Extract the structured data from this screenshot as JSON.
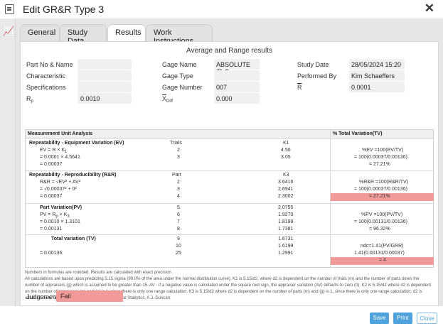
{
  "window": {
    "title": "Edit GR&R Type 3",
    "close_label": "✕"
  },
  "rail": {
    "icon": "chart-icon",
    "glyph": "📈"
  },
  "tabs": [
    {
      "label": "General",
      "active": false
    },
    {
      "label": "Study Data",
      "active": false
    },
    {
      "label": "Results",
      "active": true
    },
    {
      "label": "Work Instructions",
      "active": false
    }
  ],
  "panel_title": "Average and Range results",
  "info": {
    "part_no_label": "Part No & Name",
    "characteristic_label": "Characteristic",
    "specifications_label": "Specifications",
    "rp_label": "R",
    "rp_sub": "p",
    "rp_value": "0.0010",
    "gage_name_label": "Gage Name",
    "gage_name_value": "ABSOLUTE ID-S",
    "gage_type_label": "Gage Type",
    "gage_number_label": "Gage Number",
    "gage_number_value": "007",
    "xdiff_label": "X",
    "xdiff_sub": "Diff",
    "xdiff_value": "0.000",
    "study_date_label": "Study Date",
    "study_date_value": "28/05/2024 15:20",
    "performed_by_label": "Performed By",
    "performed_by_value": "Kim Schaeffers",
    "rbar_label": "R",
    "rbar_value": "0.0001"
  },
  "mua": {
    "title": "Measurement Unit Analysis",
    "pct_title": "% Total Variation(TV)",
    "ev": {
      "title": "Repeatability - Equipment Variation (EV)",
      "f1": "EV = R  × K",
      "f1_sub": "1",
      "f2": "= 0.0001 × 4.5641",
      "f3": "= 0.00037",
      "col_label": "Trials",
      "rows": [
        {
          "n": "2",
          "k": "4.56"
        },
        {
          "n": "3",
          "k": "3.05"
        }
      ],
      "k_label": "K1",
      "p1": "%EV =100(EV/TV)",
      "p2": "= 100(0.00037/0.00136)",
      "p3": "= 27.21%"
    },
    "rr": {
      "title": "Repeatability - Reproducibility (R&R)",
      "f1": "R&R = √EV² + AV²",
      "f2": "= √0.00037² + 0²",
      "f3": "= 0.00037",
      "col_label": "Part",
      "rows": [
        {
          "n": "2",
          "k": "3.6416"
        },
        {
          "n": "3",
          "k": "2.6941"
        },
        {
          "n": "4",
          "k": "2.3002"
        }
      ],
      "k_label": "K3",
      "p1": "%R&R =100(R&R/TV)",
      "p2": "= 100(0.00037/0.00136)",
      "p3": "= 27.21%"
    },
    "pv": {
      "title": "Part Variation(PV)",
      "f1": "PV = R  × K",
      "f1_sub_p": "p",
      "f1_sub_k": "3",
      "f2": "= 0.0010 × 1.3101",
      "f3": "= 0.00131",
      "rows": [
        {
          "n": "5",
          "k": "2.0755"
        },
        {
          "n": "6",
          "k": "1.9270"
        },
        {
          "n": "7",
          "k": "1.8199"
        },
        {
          "n": "8",
          "k": "1.7381"
        }
      ],
      "p1": "%PV =100(PV/TV)",
      "p2": "= 100(0.00131/0.00136)",
      "p3": "= 96.32%"
    },
    "tv": {
      "title": "Total variation (TV)",
      "f3": "= 0.00136",
      "rows": [
        {
          "n": "9",
          "k": "1.6731"
        },
        {
          "n": "10",
          "k": "1.6199"
        },
        {
          "n": "25",
          "k": "1.2991"
        }
      ],
      "p1": "ndc=1.41(PV/GRR)",
      "p2": "1.41(0.00131/0.00037)",
      "p3": "= 4"
    }
  },
  "notes": {
    "rounded": "Numbers in formulas are rounded. Results are calculated with exact precision",
    "body": "All calculations are based upon predicting 5.15 sigma (99.0% of the area under the normal distribution curve). K1 is 5.15/d2, where d2 is dependent on the number of trials (m) and the number of parts times the number of appraisers (g) which is assumed to be greater than 15. AV - if a negative value is calculated under the square root sign, the appraiser variation (AV) defaults to zero (0). K2 is 5.15/d2 where d2 is dependent on the number of appraisers (m) and (g) is 1, since there is only one range calculation. K3 is 5.15/d2 where d2 is dependent on the number of parts (m) and (g) is 1, since there is only one range calculation. d2 is obtained from Table D3, Quality Control and Industrial Statistics, A.J. Duncan."
  },
  "judgement": {
    "label": "Judgement",
    "value": "Fail"
  },
  "buttons": {
    "save": "Save",
    "print": "Print",
    "close": "Close"
  },
  "colors": {
    "accent": "#4ea3dc",
    "fail": "#f29a9a"
  }
}
